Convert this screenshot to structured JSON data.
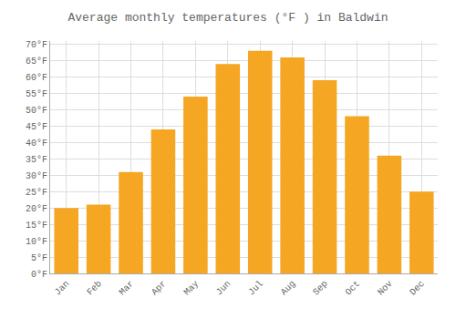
{
  "chart_data": {
    "type": "bar",
    "title": "Average monthly temperatures (°F ) in Baldwin",
    "categories": [
      "Jan",
      "Feb",
      "Mar",
      "Apr",
      "May",
      "Jun",
      "Jul",
      "Aug",
      "Sep",
      "Oct",
      "Nov",
      "Dec"
    ],
    "values": [
      20,
      21,
      31,
      44,
      54,
      64,
      68,
      66,
      59,
      48,
      36,
      25
    ],
    "color": "#F5A623",
    "ylim": [
      0,
      71
    ],
    "yticks": [
      {
        "value": 0,
        "label": "0°F"
      },
      {
        "value": 5,
        "label": "5°F"
      },
      {
        "value": 10,
        "label": "10°F"
      },
      {
        "value": 15,
        "label": "15°F"
      },
      {
        "value": 20,
        "label": "20°F"
      },
      {
        "value": 25,
        "label": "25°F"
      },
      {
        "value": 30,
        "label": "30°F"
      },
      {
        "value": 35,
        "label": "35°F"
      },
      {
        "value": 40,
        "label": "40°F"
      },
      {
        "value": 45,
        "label": "45°F"
      },
      {
        "value": 50,
        "label": "50°F"
      },
      {
        "value": 55,
        "label": "55°F"
      },
      {
        "value": 60,
        "label": "60°F"
      },
      {
        "value": 65,
        "label": "65°F"
      },
      {
        "value": 70,
        "label": "70°F"
      }
    ],
    "grid": true
  }
}
